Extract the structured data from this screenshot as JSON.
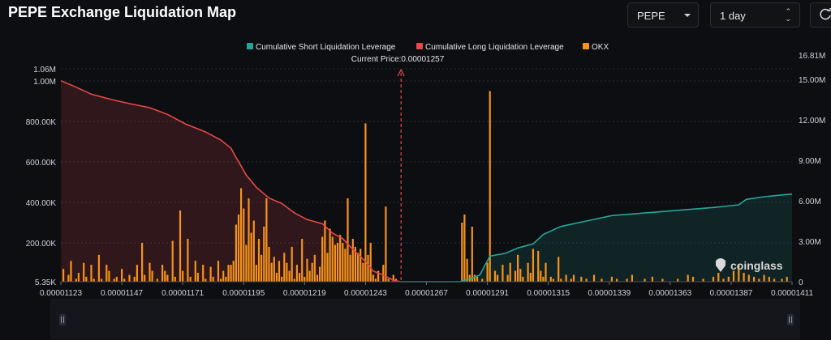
{
  "header": {
    "title": "PEPE Exchange Liquidation Map"
  },
  "controls": {
    "symbol": "PEPE",
    "symbol_icon": "chevron-down-icon",
    "range": "1 day",
    "range_icon": "updown-icon",
    "refresh_icon": "refresh-icon"
  },
  "watermark": {
    "text": "coinglass",
    "icon": "coinglass-logo-icon"
  },
  "chart_data": {
    "type": "bar",
    "legend": [
      {
        "name": "Cumulative Short Liquidation Leverage",
        "color": "#26a69a"
      },
      {
        "name": "Cumulative Long Liquidation Leverage",
        "color": "#e84848"
      },
      {
        "name": "OKX",
        "color": "#f7931a"
      }
    ],
    "legend_position": "top-center",
    "current_price_label": "Current Price:0.00001257",
    "current_price": 1.257e-05,
    "x_ticks": [
      "0.00001123",
      "0.00001147",
      "0.00001171",
      "0.00001195",
      "0.00001219",
      "0.00001243",
      "0.00001267",
      "0.00001291",
      "0.00001315",
      "0.00001339",
      "0.00001363",
      "0.00001387",
      "0.00001411"
    ],
    "xlim": [
      1.123e-05,
      1.411e-05
    ],
    "left_axis": {
      "ticks": [
        "5.35K",
        "200.00K",
        "400.00K",
        "600.00K",
        "800.00K",
        "1.00M",
        "1.06M"
      ],
      "values": [
        5350,
        200000,
        400000,
        600000,
        800000,
        1000000,
        1060000
      ],
      "range": [
        5350,
        1060000
      ]
    },
    "right_axis": {
      "ticks": [
        "0",
        "3.00M",
        "6.00M",
        "9.00M",
        "12.00M",
        "15.00M",
        "16.81M"
      ],
      "values": [
        0,
        3000000,
        6000000,
        9000000,
        12000000,
        15000000,
        16810000
      ],
      "range": [
        0,
        16810000
      ]
    },
    "okx_bars": [
      [
        1.124e-05,
        70000
      ],
      [
        1.126e-05,
        40000
      ],
      [
        1.127e-05,
        110000
      ],
      [
        1.129e-05,
        20000
      ],
      [
        1.13e-05,
        50000
      ],
      [
        1.132e-05,
        100000
      ],
      [
        1.133e-05,
        30000
      ],
      [
        1.135e-05,
        90000
      ],
      [
        1.136e-05,
        20000
      ],
      [
        1.138e-05,
        140000
      ],
      [
        1.139e-05,
        20000
      ],
      [
        1.141e-05,
        90000
      ],
      [
        1.142e-05,
        60000
      ],
      [
        1.144e-05,
        20000
      ],
      [
        1.145e-05,
        30000
      ],
      [
        1.147e-05,
        70000
      ],
      [
        1.148e-05,
        20000
      ],
      [
        1.15e-05,
        40000
      ],
      [
        1.152e-05,
        30000
      ],
      [
        1.153e-05,
        90000
      ],
      [
        1.155e-05,
        200000
      ],
      [
        1.156e-05,
        40000
      ],
      [
        1.158e-05,
        100000
      ],
      [
        1.159e-05,
        60000
      ],
      [
        1.161e-05,
        20000
      ],
      [
        1.163e-05,
        90000
      ],
      [
        1.164e-05,
        60000
      ],
      [
        1.165e-05,
        40000
      ],
      [
        1.167e-05,
        210000
      ],
      [
        1.168e-05,
        30000
      ],
      [
        1.17e-05,
        360000
      ],
      [
        1.171e-05,
        60000
      ],
      [
        1.173e-05,
        220000
      ],
      [
        1.174e-05,
        30000
      ],
      [
        1.176e-05,
        110000
      ],
      [
        1.177e-05,
        50000
      ],
      [
        1.179e-05,
        90000
      ],
      [
        1.18e-05,
        20000
      ],
      [
        1.182e-05,
        80000
      ],
      [
        1.183e-05,
        30000
      ],
      [
        1.185e-05,
        110000
      ],
      [
        1.186e-05,
        20000
      ],
      [
        1.187e-05,
        60000
      ],
      [
        1.188e-05,
        30000
      ],
      [
        1.189e-05,
        90000
      ],
      [
        1.19e-05,
        90000
      ],
      [
        1.191e-05,
        110000
      ],
      [
        1.192e-05,
        290000
      ],
      [
        1.193e-05,
        340000
      ],
      [
        1.194e-05,
        470000
      ],
      [
        1.195e-05,
        370000
      ],
      [
        1.196e-05,
        190000
      ],
      [
        1.197e-05,
        420000
      ],
      [
        1.198e-05,
        250000
      ],
      [
        1.199e-05,
        310000
      ],
      [
        1.2e-05,
        90000
      ],
      [
        1.201e-05,
        220000
      ],
      [
        1.202e-05,
        140000
      ],
      [
        1.203e-05,
        280000
      ],
      [
        1.204e-05,
        420000
      ],
      [
        1.205e-05,
        180000
      ],
      [
        1.206e-05,
        100000
      ],
      [
        1.207e-05,
        130000
      ],
      [
        1.208e-05,
        50000
      ],
      [
        1.209e-05,
        110000
      ],
      [
        1.21e-05,
        30000
      ],
      [
        1.211e-05,
        150000
      ],
      [
        1.212e-05,
        100000
      ],
      [
        1.213e-05,
        60000
      ],
      [
        1.214e-05,
        180000
      ],
      [
        1.215e-05,
        20000
      ],
      [
        1.216e-05,
        90000
      ],
      [
        1.217e-05,
        50000
      ],
      [
        1.218e-05,
        220000
      ],
      [
        1.219e-05,
        30000
      ],
      [
        1.22e-05,
        120000
      ],
      [
        1.221e-05,
        60000
      ],
      [
        1.222e-05,
        100000
      ],
      [
        1.223e-05,
        140000
      ],
      [
        1.224e-05,
        40000
      ],
      [
        1.225e-05,
        80000
      ],
      [
        1.226e-05,
        230000
      ],
      [
        1.227e-05,
        310000
      ],
      [
        1.228e-05,
        150000
      ],
      [
        1.229e-05,
        270000
      ],
      [
        1.23e-05,
        230000
      ],
      [
        1.231e-05,
        190000
      ],
      [
        1.232e-05,
        200000
      ],
      [
        1.233e-05,
        240000
      ],
      [
        1.234e-05,
        200000
      ],
      [
        1.235e-05,
        170000
      ],
      [
        1.236e-05,
        420000
      ],
      [
        1.237e-05,
        140000
      ],
      [
        1.238e-05,
        220000
      ],
      [
        1.239e-05,
        180000
      ],
      [
        1.24e-05,
        150000
      ],
      [
        1.241e-05,
        170000
      ],
      [
        1.242e-05,
        100000
      ],
      [
        1.243e-05,
        790000
      ],
      [
        1.244e-05,
        140000
      ],
      [
        1.245e-05,
        200000
      ],
      [
        1.246e-05,
        40000
      ],
      [
        1.247e-05,
        20000
      ],
      [
        1.248e-05,
        60000
      ],
      [
        1.25e-05,
        90000
      ],
      [
        1.251e-05,
        380000
      ],
      [
        1.252e-05,
        20000
      ],
      [
        1.254e-05,
        40000
      ],
      [
        1.255e-05,
        20000
      ],
      [
        1.281e-05,
        300000
      ],
      [
        1.282e-05,
        340000
      ],
      [
        1.283e-05,
        120000
      ],
      [
        1.284e-05,
        40000
      ],
      [
        1.285e-05,
        280000
      ],
      [
        1.286e-05,
        40000
      ],
      [
        1.287e-05,
        30000
      ],
      [
        1.289e-05,
        20000
      ],
      [
        1.291e-05,
        100000
      ],
      [
        1.292e-05,
        950000
      ],
      [
        1.294e-05,
        60000
      ],
      [
        1.295e-05,
        40000
      ],
      [
        1.297e-05,
        90000
      ],
      [
        1.299e-05,
        40000
      ],
      [
        1.3e-05,
        100000
      ],
      [
        1.302e-05,
        60000
      ],
      [
        1.303e-05,
        140000
      ],
      [
        1.304e-05,
        70000
      ],
      [
        1.305e-05,
        30000
      ],
      [
        1.307e-05,
        100000
      ],
      [
        1.308e-05,
        50000
      ],
      [
        1.309e-05,
        170000
      ],
      [
        1.311e-05,
        160000
      ],
      [
        1.312e-05,
        60000
      ],
      [
        1.313e-05,
        30000
      ],
      [
        1.314e-05,
        100000
      ],
      [
        1.316e-05,
        30000
      ],
      [
        1.317e-05,
        20000
      ],
      [
        1.319e-05,
        130000
      ],
      [
        1.32e-05,
        20000
      ],
      [
        1.322e-05,
        40000
      ],
      [
        1.324e-05,
        20000
      ],
      [
        1.325e-05,
        40000
      ],
      [
        1.328e-05,
        30000
      ],
      [
        1.33e-05,
        20000
      ],
      [
        1.333e-05,
        40000
      ],
      [
        1.336e-05,
        20000
      ],
      [
        1.34e-05,
        30000
      ],
      [
        1.342e-05,
        20000
      ],
      [
        1.346e-05,
        20000
      ],
      [
        1.348e-05,
        40000
      ],
      [
        1.353e-05,
        20000
      ],
      [
        1.356e-05,
        30000
      ],
      [
        1.36e-05,
        20000
      ],
      [
        1.366e-05,
        20000
      ],
      [
        1.37e-05,
        40000
      ],
      [
        1.372e-05,
        30000
      ],
      [
        1.376e-05,
        20000
      ],
      [
        1.38e-05,
        30000
      ],
      [
        1.382e-05,
        50000
      ],
      [
        1.384e-05,
        20000
      ],
      [
        1.386e-05,
        30000
      ],
      [
        1.388e-05,
        60000
      ],
      [
        1.39e-05,
        90000
      ],
      [
        1.392e-05,
        50000
      ],
      [
        1.394e-05,
        40000
      ],
      [
        1.396e-05,
        30000
      ],
      [
        1.398e-05,
        20000
      ],
      [
        1.4e-05,
        40000
      ],
      [
        1.402e-05,
        30000
      ],
      [
        1.404e-05,
        20000
      ],
      [
        1.407e-05,
        20000
      ],
      [
        1.409e-05,
        30000
      ]
    ],
    "long_cumulative": [
      [
        1.123e-05,
        14900000
      ],
      [
        1.128e-05,
        14500000
      ],
      [
        1.135e-05,
        13900000
      ],
      [
        1.143e-05,
        13500000
      ],
      [
        1.15e-05,
        13200000
      ],
      [
        1.158e-05,
        12900000
      ],
      [
        1.165e-05,
        12400000
      ],
      [
        1.172e-05,
        11700000
      ],
      [
        1.18e-05,
        11100000
      ],
      [
        1.186e-05,
        10500000
      ],
      [
        1.19e-05,
        9900000
      ],
      [
        1.192e-05,
        9200000
      ],
      [
        1.193e-05,
        8900000
      ],
      [
        1.196e-05,
        7900000
      ],
      [
        1.2e-05,
        7000000
      ],
      [
        1.205e-05,
        6200000
      ],
      [
        1.21e-05,
        5800000
      ],
      [
        1.215e-05,
        5100000
      ],
      [
        1.22e-05,
        4600000
      ],
      [
        1.226e-05,
        4300000
      ],
      [
        1.23e-05,
        3600000
      ],
      [
        1.234e-05,
        3200000
      ],
      [
        1.238e-05,
        2400000
      ],
      [
        1.243e-05,
        1500000
      ],
      [
        1.246e-05,
        800000
      ],
      [
        1.25e-05,
        500000
      ],
      [
        1.254e-05,
        100000
      ],
      [
        1.257e-05,
        0
      ]
    ],
    "short_cumulative": [
      [
        1.257e-05,
        0
      ],
      [
        1.28e-05,
        0
      ],
      [
        1.283e-05,
        150000
      ],
      [
        1.288e-05,
        500000
      ],
      [
        1.292e-05,
        1900000
      ],
      [
        1.298e-05,
        2100000
      ],
      [
        1.303e-05,
        2500000
      ],
      [
        1.309e-05,
        2800000
      ],
      [
        1.313e-05,
        3500000
      ],
      [
        1.32e-05,
        4100000
      ],
      [
        1.33e-05,
        4500000
      ],
      [
        1.34e-05,
        4900000
      ],
      [
        1.36e-05,
        5200000
      ],
      [
        1.38e-05,
        5500000
      ],
      [
        1.39e-05,
        5700000
      ],
      [
        1.393e-05,
        6100000
      ],
      [
        1.4e-05,
        6300000
      ],
      [
        1.411e-05,
        6500000
      ]
    ]
  }
}
